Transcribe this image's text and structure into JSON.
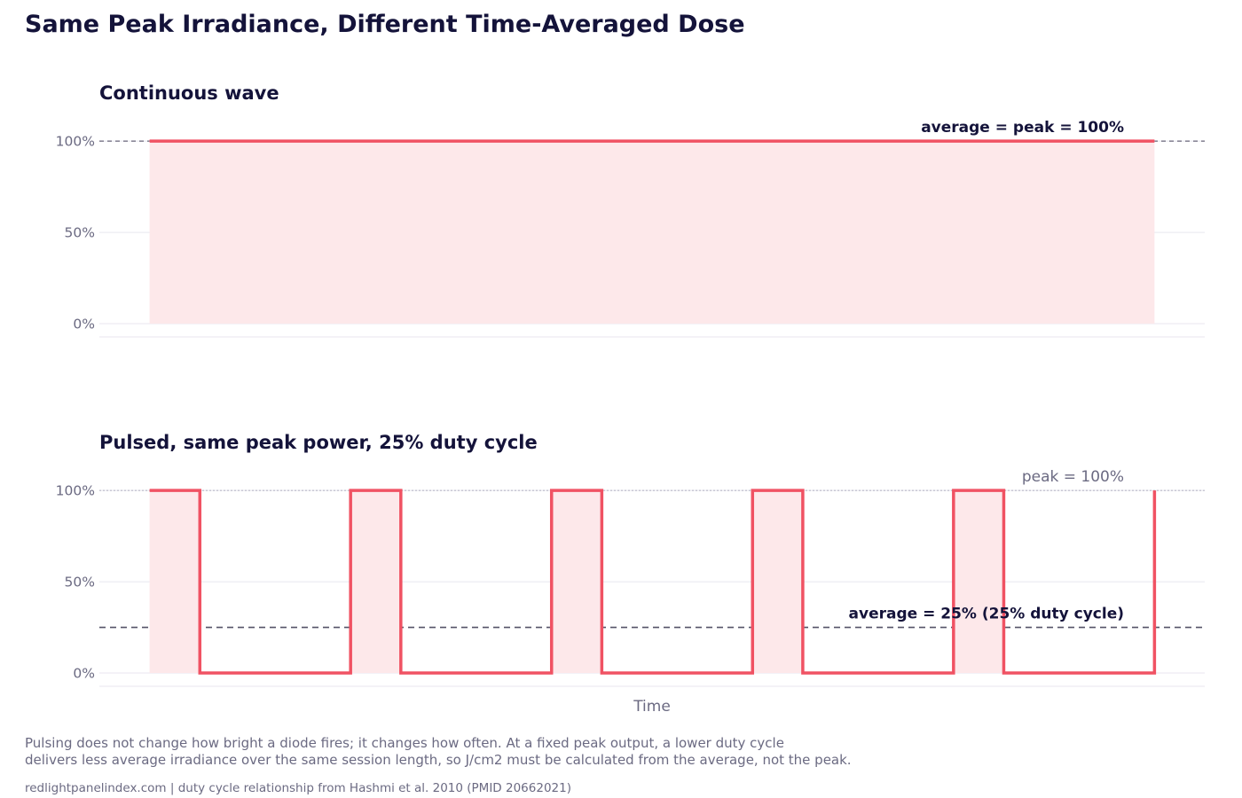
{
  "title": "Same Peak Irradiance, Different Time-Averaged Dose",
  "footer": {
    "line1": "Pulsing does not change how bright a diode fires; it changes how often. At a fixed peak output, a lower duty cycle",
    "line2": "delivers less average irradiance over the same session length, so J/cm2 must be calculated from the average, not the peak.",
    "source": "redlightpanelindex.com | duty cycle relationship from Hashmi et al. 2010 (PMID 20662021)"
  },
  "colors": {
    "signal": "#f05263",
    "fill": "#fde8ea",
    "text_dark": "#14133a",
    "text_muted": "#6b6a82",
    "grid": "#e8e6ef"
  },
  "chart_data": [
    {
      "type": "line",
      "title": "Continuous wave",
      "xlabel": "",
      "ylabel": "",
      "yticks": [
        "0%",
        "50%",
        "100%"
      ],
      "ylim": [
        0,
        120
      ],
      "xlim": [
        -0.25,
        5.25
      ],
      "series": [
        {
          "x": [
            0,
            5
          ],
          "y": [
            100,
            100
          ]
        }
      ],
      "reference_lines": [
        {
          "y": 100,
          "style": "dashed",
          "label": "average = peak = 100%",
          "label_weight": "bold"
        }
      ],
      "grid": true
    },
    {
      "type": "line",
      "title": "Pulsed, same peak power, 25% duty cycle",
      "xlabel": "Time",
      "ylabel": "",
      "yticks": [
        "0%",
        "50%",
        "100%"
      ],
      "ylim": [
        0,
        120
      ],
      "xlim": [
        -0.25,
        5.25
      ],
      "series": [
        {
          "x": [
            0,
            0.25,
            0.25,
            1,
            1,
            1.25,
            1.25,
            2,
            2,
            2.25,
            2.25,
            3,
            3,
            3.25,
            3.25,
            4,
            4,
            4.25,
            4.25,
            5,
            5
          ],
          "y": [
            100,
            100,
            0,
            0,
            100,
            100,
            0,
            0,
            100,
            100,
            0,
            0,
            100,
            100,
            0,
            0,
            100,
            100,
            0,
            0,
            100
          ]
        }
      ],
      "reference_lines": [
        {
          "y": 100,
          "style": "dotted",
          "label": "peak = 100%",
          "label_weight": "normal"
        },
        {
          "y": 25,
          "style": "dashed",
          "label": "average = 25% (25% duty cycle)",
          "label_weight": "bold"
        }
      ],
      "grid": true
    }
  ]
}
